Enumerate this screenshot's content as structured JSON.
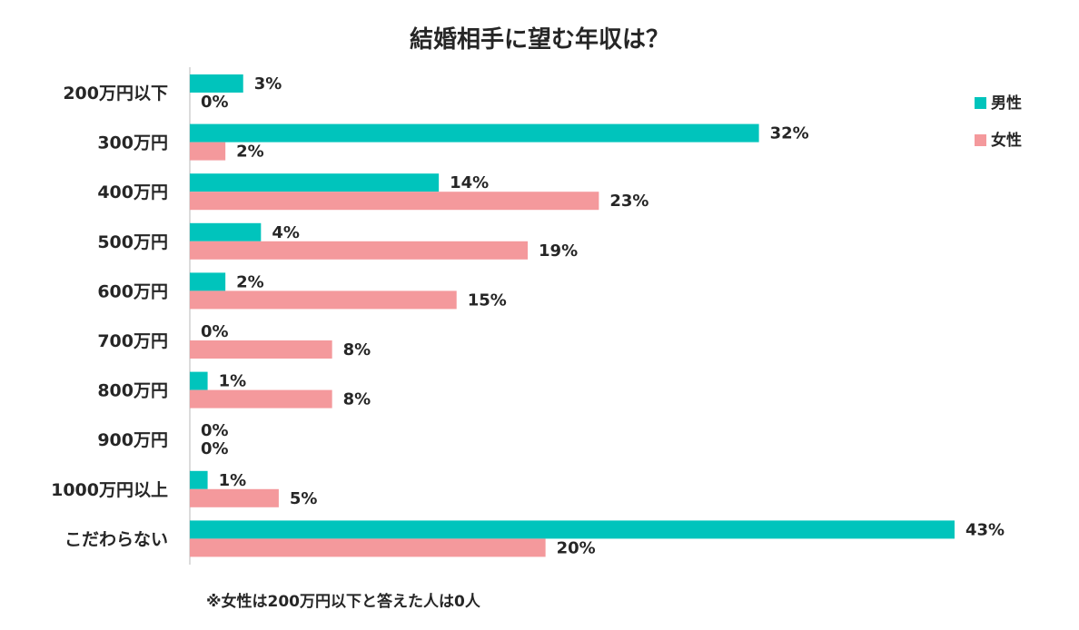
{
  "chart_data": {
    "type": "bar",
    "orientation": "horizontal",
    "title": "結婚相手に望む年収は？",
    "categories": [
      "200万円以下",
      "300万円",
      "400万円",
      "500万円",
      "600万円",
      "700万円",
      "800万円",
      "900万円",
      "1000万円以上",
      "こだわらない"
    ],
    "series": [
      {
        "name": "男性",
        "color": "#00c4bc",
        "values": [
          3,
          32,
          14,
          4,
          2,
          0,
          1,
          0,
          1,
          43
        ],
        "labels": [
          "3%",
          "32%",
          "14%",
          "4%",
          "2%",
          "0%",
          "1%",
          "0%",
          "1%",
          "43%"
        ]
      },
      {
        "name": "女性",
        "color": "#f4999c",
        "values": [
          0,
          2,
          23,
          19,
          15,
          8,
          8,
          0,
          5,
          20
        ],
        "labels": [
          "0%",
          "2%",
          "23%",
          "19%",
          "15%",
          "8%",
          "8%",
          "0%",
          "5%",
          "20%"
        ]
      }
    ],
    "xlim": [
      0,
      43
    ],
    "unit": "%",
    "grid": false,
    "legend_position": "top-right",
    "footnote": "※女性は200万円以下と答えた人は0人"
  }
}
